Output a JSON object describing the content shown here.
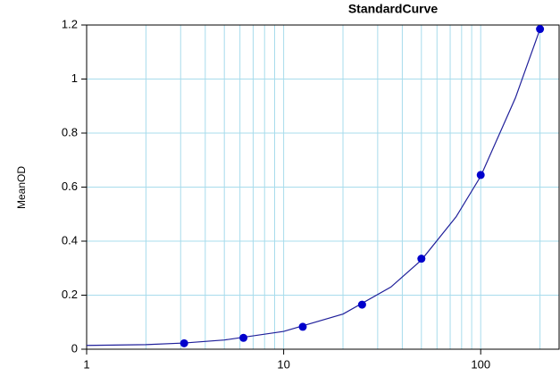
{
  "chart_data": {
    "type": "scatter",
    "title": "StandardCurve",
    "y_label": "MeanOD",
    "x_scale": "log",
    "grid": true,
    "grid_color": "#a8dcec",
    "xlim": [
      1,
      250
    ],
    "xticks": [
      1,
      10,
      100
    ],
    "x_minor_ticks": [
      2,
      3,
      4,
      5,
      6,
      7,
      8,
      9,
      20,
      30,
      40,
      50,
      60,
      70,
      80,
      90,
      200
    ],
    "ylim": [
      0,
      1.2
    ],
    "yticks": [
      0,
      0.2,
      0.4,
      0.6,
      0.8,
      1,
      1.2
    ],
    "series": [
      {
        "kind": "points",
        "color": "#0000cc",
        "x": [
          3.125,
          6.25,
          12.5,
          25,
          50,
          100,
          200
        ],
        "values": [
          0.022,
          0.042,
          0.083,
          0.165,
          0.335,
          0.645,
          1.185
        ]
      },
      {
        "kind": "line",
        "color": "#1f1f9a",
        "x": [
          1,
          2,
          3.125,
          5,
          10,
          20,
          35,
          50,
          75,
          100,
          150,
          200
        ],
        "values": [
          0.014,
          0.017,
          0.023,
          0.034,
          0.066,
          0.13,
          0.23,
          0.33,
          0.49,
          0.64,
          0.93,
          1.185
        ]
      }
    ]
  }
}
